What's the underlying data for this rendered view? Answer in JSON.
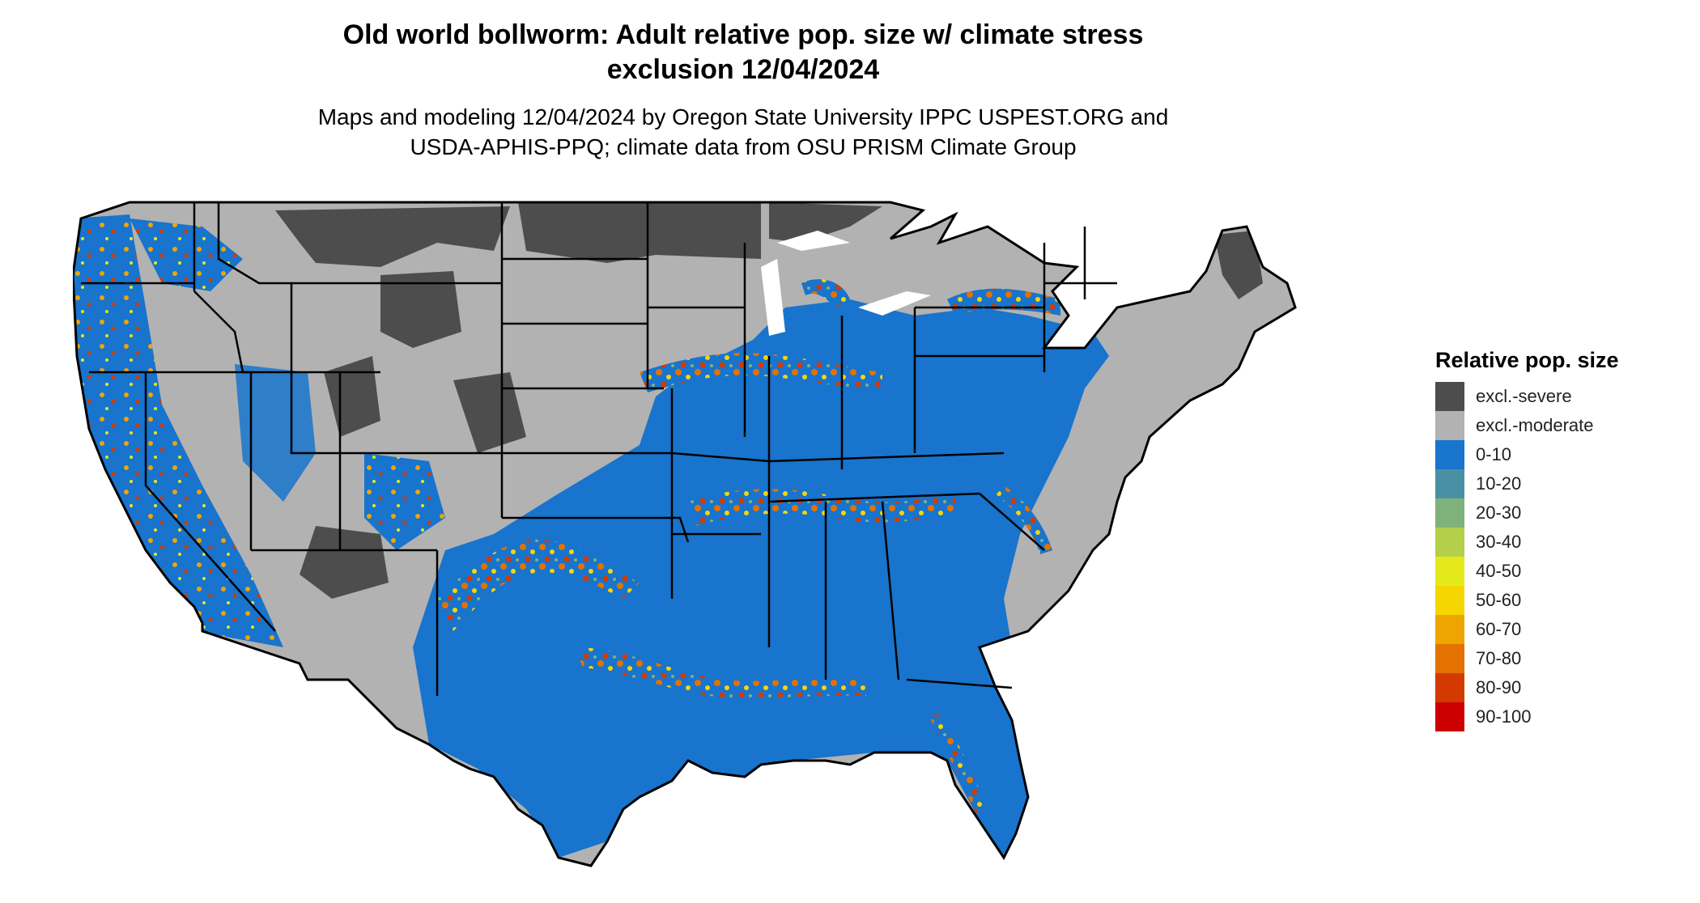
{
  "header": {
    "title_line1": "Old world bollworm: Adult relative pop. size w/ climate stress",
    "title_line2": "exclusion 12/04/2024",
    "subtitle_line1": "Maps and modeling 12/04/2024 by Oregon State University IPPC USPEST.ORG and",
    "subtitle_line2": "USDA-APHIS-PPQ; climate data from OSU PRISM Climate Group"
  },
  "legend": {
    "title": "Relative pop. size",
    "items": [
      {
        "label": "excl.-severe",
        "color": "#4d4d4d"
      },
      {
        "label": "excl.-moderate",
        "color": "#b2b2b2"
      },
      {
        "label": "0-10",
        "color": "#1874cd"
      },
      {
        "label": "10-20",
        "color": "#4a90a4"
      },
      {
        "label": "20-30",
        "color": "#7fb27a"
      },
      {
        "label": "30-40",
        "color": "#b4cf49"
      },
      {
        "label": "40-50",
        "color": "#e4ea1a"
      },
      {
        "label": "50-60",
        "color": "#f6d600"
      },
      {
        "label": "60-70",
        "color": "#efa500"
      },
      {
        "label": "70-80",
        "color": "#e37200"
      },
      {
        "label": "80-90",
        "color": "#d33a00"
      },
      {
        "label": "90-100",
        "color": "#cc0000"
      }
    ]
  },
  "map": {
    "region": "Contiguous United States",
    "border_color": "#000000",
    "zones": {
      "severe": "#4d4d4d",
      "moderate": "#b2b2b2",
      "low": "#1874cd",
      "hot_orange": "#e37200",
      "hot_red": "#d33a00",
      "hot_yellow": "#f6d600"
    }
  }
}
